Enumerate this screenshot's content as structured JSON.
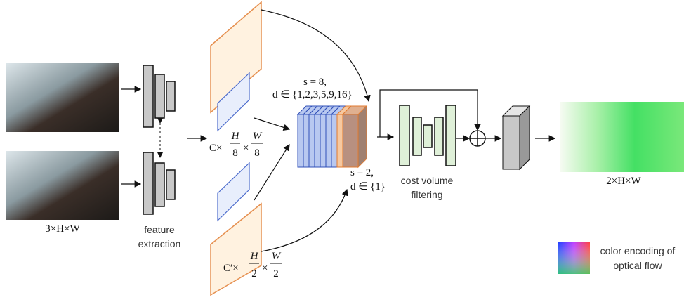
{
  "input_size": "3×H×W",
  "feature_extraction": [
    "feature",
    "extraction"
  ],
  "coarse_features": {
    "prefix": "C×",
    "h": "H",
    "h_den": "8",
    "times": "×",
    "w": "W",
    "w_den": "8"
  },
  "fine_features": {
    "prefix": "C′×",
    "h": "H",
    "h_den": "2",
    "times": "×",
    "w": "W",
    "w_den": "2"
  },
  "coarse_volume": [
    "s = 8,",
    "d ∈ {1,2,3,5,9,16}"
  ],
  "fine_volume": [
    "s = 2,",
    "d ∈ {1}"
  ],
  "cost_volume_filtering": [
    "cost volume",
    "filtering"
  ],
  "output_size": "2×H×W",
  "color_encoding": [
    "color encoding of",
    "optical flow"
  ]
}
